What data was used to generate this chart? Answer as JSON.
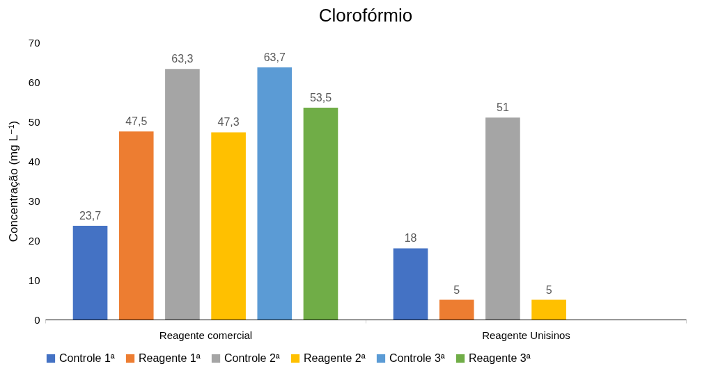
{
  "chart_data": {
    "type": "bar",
    "title": "Clorofórmio",
    "ylabel": "Concentração (mg L⁻¹)",
    "categories": [
      "Reagente comercial",
      "Reagente Unisinos"
    ],
    "series": [
      {
        "name": "Controle 1ª",
        "color": "#4472c4",
        "values": [
          23.7,
          18
        ],
        "value_labels": [
          "23,7",
          "18"
        ]
      },
      {
        "name": "Reagente 1ª",
        "color": "#ed7d31",
        "values": [
          47.5,
          5
        ],
        "value_labels": [
          "47,5",
          "5"
        ]
      },
      {
        "name": "Controle 2ª",
        "color": "#a5a5a5",
        "values": [
          63.3,
          51
        ],
        "value_labels": [
          "63,3",
          "51"
        ]
      },
      {
        "name": "Reagente 2ª",
        "color": "#ffc000",
        "values": [
          47.3,
          5
        ],
        "value_labels": [
          "47,3",
          "5"
        ]
      },
      {
        "name": "Controle 3ª",
        "color": "#5b9bd5",
        "values": [
          63.7,
          null
        ],
        "value_labels": [
          "63,7",
          null
        ]
      },
      {
        "name": "Reagente 3ª",
        "color": "#70ad47",
        "values": [
          53.5,
          null
        ],
        "value_labels": [
          "53,5",
          null
        ]
      }
    ],
    "ylim": [
      0,
      70
    ],
    "yticks": [
      0,
      10,
      20,
      30,
      40,
      50,
      60,
      70
    ],
    "legend": "bottom"
  }
}
